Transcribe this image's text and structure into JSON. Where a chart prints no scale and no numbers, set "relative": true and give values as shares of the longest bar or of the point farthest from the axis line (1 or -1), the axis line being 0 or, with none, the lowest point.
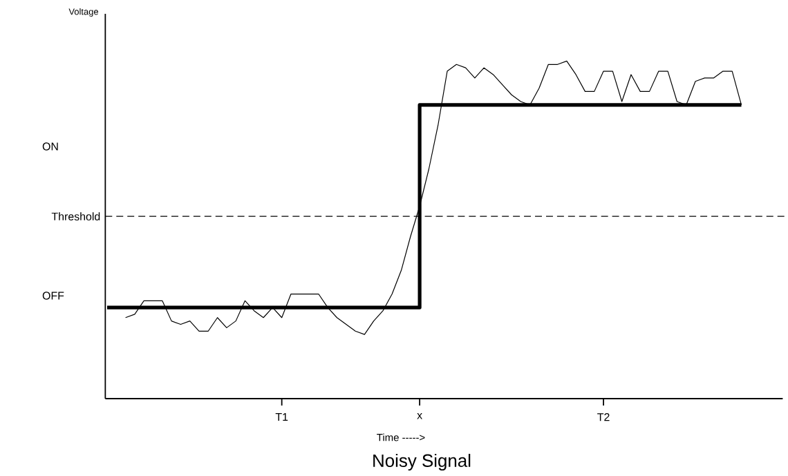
{
  "chart_data": {
    "type": "line",
    "title": "Noisy Signal",
    "xlabel": "Time ----->",
    "ylabel": "Voltage",
    "relative": true,
    "categories": [
      null,
      null,
      null,
      null,
      null,
      null,
      null,
      null,
      null,
      null,
      null,
      null,
      null,
      null,
      null,
      null,
      null,
      null,
      null,
      "T1",
      null,
      null,
      null,
      null,
      null,
      null,
      null,
      null,
      null,
      null,
      null,
      null,
      null,
      null,
      "x",
      null,
      null,
      null,
      null,
      null,
      null,
      null,
      null,
      null,
      null,
      null,
      null,
      null,
      null,
      null,
      null,
      null,
      null,
      null,
      "T2",
      null,
      null,
      null,
      null,
      null,
      null,
      null,
      null,
      null,
      null,
      null,
      null,
      null,
      null,
      null
    ],
    "series": [
      {
        "type": "step",
        "color": "#000000",
        "values": [
          0.27,
          0.27,
          0.27,
          0.27,
          0.27,
          0.27,
          0.27,
          0.27,
          0.27,
          0.27,
          0.27,
          0.27,
          0.27,
          0.27,
          0.27,
          0.27,
          0.27,
          0.27,
          0.27,
          0.27,
          0.27,
          0.27,
          0.27,
          0.27,
          0.27,
          0.27,
          0.27,
          0.27,
          0.27,
          0.27,
          0.27,
          0.27,
          0.27,
          0.27,
          0.87,
          0.87,
          0.87,
          0.87,
          0.87,
          0.87,
          0.87,
          0.87,
          0.87,
          0.87,
          0.87,
          0.87,
          0.87,
          0.87,
          0.87,
          0.87,
          0.87,
          0.87,
          0.87,
          0.87,
          0.87,
          0.87,
          0.87,
          0.87,
          0.87,
          0.87,
          0.87,
          0.87,
          0.87,
          0.87,
          0.87,
          0.87,
          0.87,
          0.87,
          0.87,
          0.87
        ]
      },
      {
        "color": "#000000",
        "values": [
          null,
          null,
          0.24,
          0.25,
          0.29,
          0.29,
          0.29,
          0.23,
          0.22,
          0.23,
          0.2,
          0.2,
          0.24,
          0.21,
          0.23,
          0.29,
          0.26,
          0.24,
          0.27,
          0.24,
          0.31,
          0.31,
          0.31,
          0.31,
          0.27,
          0.24,
          0.22,
          0.2,
          0.19,
          0.23,
          0.26,
          0.31,
          0.38,
          0.48,
          0.57,
          0.68,
          0.81,
          0.97,
          0.99,
          0.98,
          0.95,
          0.98,
          0.96,
          0.93,
          0.9,
          0.88,
          0.87,
          0.92,
          0.99,
          0.99,
          1.0,
          0.96,
          0.91,
          0.91,
          0.97,
          0.97,
          0.88,
          0.96,
          0.91,
          0.91,
          0.97,
          0.97,
          0.88,
          0.87,
          0.94,
          0.95,
          0.95,
          0.97,
          0.97,
          0.87
        ]
      }
    ],
    "ref_lines": [
      {
        "axis": "y",
        "value": 0.54,
        "label": "Threshold",
        "line_style": "dashed"
      }
    ],
    "annotations": [
      "ON",
      "OFF"
    ]
  }
}
